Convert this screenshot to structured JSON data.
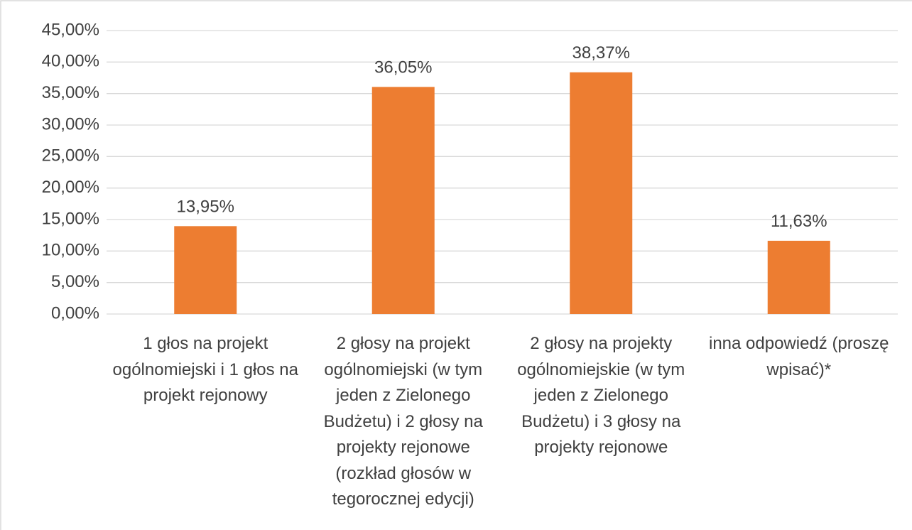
{
  "chart_data": {
    "type": "bar",
    "categories": [
      "1 głos na projekt ogólnomiejski i 1 głos na projekt rejonowy",
      "2 głosy na projekt ogólnomiejski (w tym jeden z Zielonego Budżetu) i 2 głosy na projekty rejonowe (rozkład głosów w tegorocznej edycji)",
      "2 głosy na projekty ogólnomiejskie (w tym jeden z Zielonego Budżetu) i 3 głosy na projekty rejonowe",
      "inna odpowiedź (proszę wpisać)*"
    ],
    "values": [
      13.95,
      36.05,
      38.37,
      11.63
    ],
    "value_labels": [
      "13,95%",
      "36,05%",
      "38,37%",
      "11,63%"
    ],
    "color": "#ed7d31",
    "ylim": [
      0,
      45
    ],
    "yticks": [
      {
        "value": 0,
        "label": "0,00%"
      },
      {
        "value": 5,
        "label": "5,00%"
      },
      {
        "value": 10,
        "label": "10,00%"
      },
      {
        "value": 15,
        "label": "15,00%"
      },
      {
        "value": 20,
        "label": "20,00%"
      },
      {
        "value": 25,
        "label": "25,00%"
      },
      {
        "value": 30,
        "label": "30,00%"
      },
      {
        "value": 35,
        "label": "35,00%"
      },
      {
        "value": 40,
        "label": "40,00%"
      },
      {
        "value": 45,
        "label": "45,00%"
      }
    ],
    "grid": true
  }
}
